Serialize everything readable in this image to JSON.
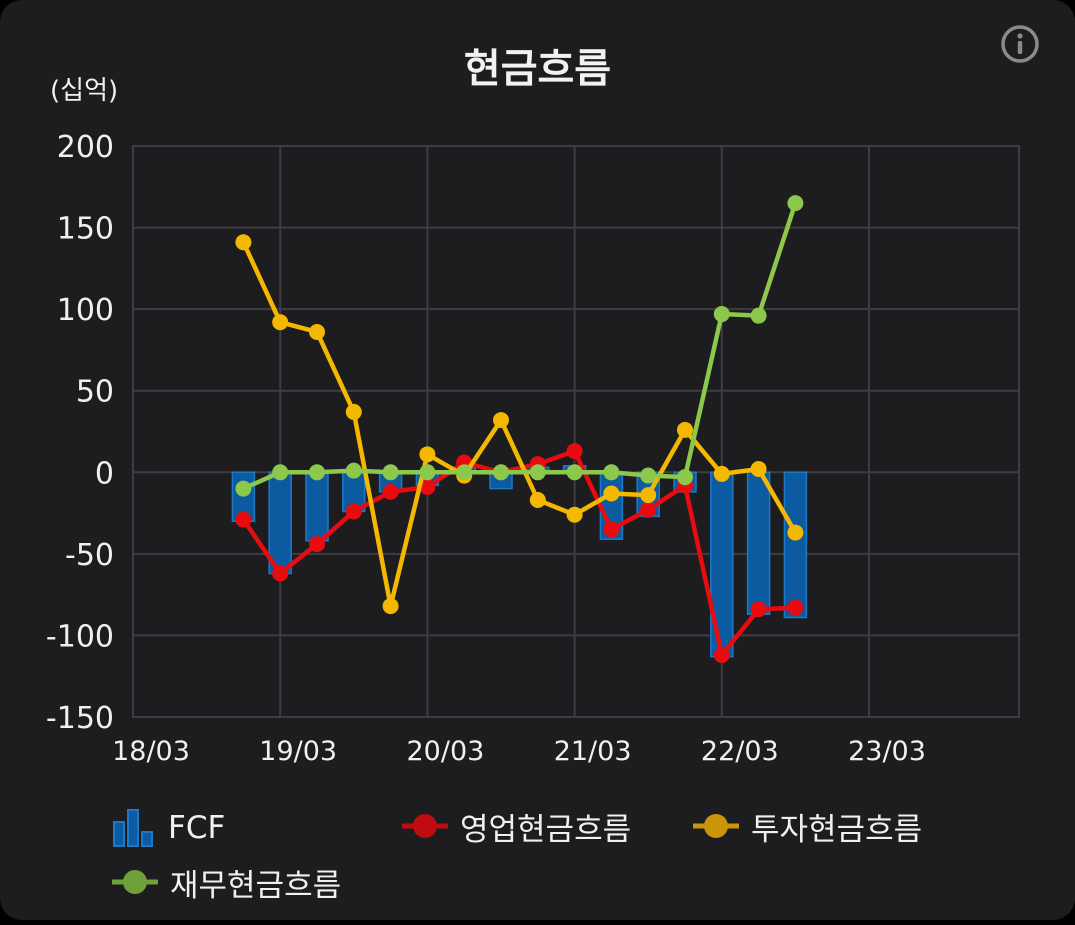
{
  "title": "현금흐름",
  "unit_label": "(십억)",
  "chart_data": {
    "type": "bar",
    "title": "현금흐름",
    "ylabel": "(십억)",
    "ylim": [
      -150,
      200
    ],
    "y_ticks": [
      200,
      150,
      100,
      50,
      0,
      -50,
      -100,
      -150
    ],
    "x_ticks": [
      "18/03",
      "19/03",
      "20/03",
      "21/03",
      "22/03",
      "23/03"
    ],
    "x": [
      "18/12",
      "19/03",
      "19/06",
      "19/09",
      "19/12",
      "20/03",
      "20/06",
      "20/09",
      "20/12",
      "21/03",
      "21/06",
      "21/09",
      "21/12",
      "22/03",
      "22/06",
      "22/09"
    ],
    "legend_position": "bottom",
    "grid": true,
    "series": [
      {
        "name": "FCF",
        "type": "bar",
        "color": "#0c5aa0",
        "values": [
          -30,
          -62,
          -42,
          -24,
          -12,
          -8,
          3,
          -10,
          3,
          4,
          -41,
          -27,
          -12,
          -113,
          -87,
          -89
        ]
      },
      {
        "name": "영업현금흐름",
        "type": "line",
        "color": "#e80c10",
        "values": [
          -29,
          -62,
          -44,
          -24,
          -12,
          -9,
          6,
          0,
          5,
          13,
          -35,
          -23,
          -8,
          -112,
          -84,
          -83
        ]
      },
      {
        "name": "투자현금흐름",
        "type": "line",
        "color": "#f5b800",
        "values": [
          141,
          92,
          86,
          37,
          -82,
          11,
          -2,
          32,
          -17,
          -26,
          -13,
          -14,
          26,
          -1,
          2,
          -37
        ]
      },
      {
        "name": "재무현금흐름",
        "type": "line",
        "color": "#8cc84b",
        "values": [
          -10,
          0,
          0,
          1,
          0,
          0,
          0,
          0,
          0,
          0,
          0,
          -2,
          -3,
          97,
          96,
          165
        ]
      }
    ]
  },
  "legend": [
    {
      "label": "FCF",
      "icon": "bar-chart-icon",
      "color": "#0c5aa0"
    },
    {
      "label": "영업현금흐름",
      "icon": "line-dot-icon",
      "color": "#c00c10"
    },
    {
      "label": "투자현금흐름",
      "icon": "line-dot-icon",
      "color": "#c89608"
    },
    {
      "label": "재무현금흐름",
      "icon": "line-dot-icon",
      "color": "#6ea03c"
    }
  ],
  "info_icon": "info-icon"
}
